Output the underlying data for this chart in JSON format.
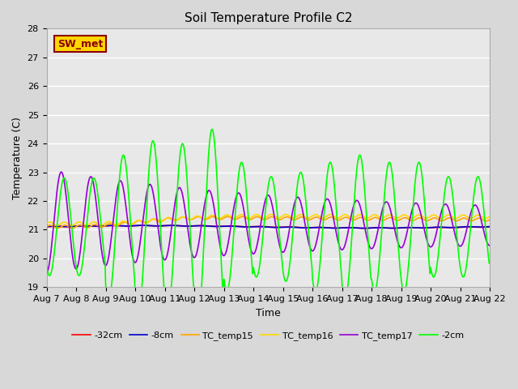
{
  "title": "Soil Temperature Profile C2",
  "xlabel": "Time",
  "ylabel": "Temperature (C)",
  "ylim": [
    19.0,
    28.0
  ],
  "yticks": [
    19.0,
    20.0,
    21.0,
    22.0,
    23.0,
    24.0,
    25.0,
    26.0,
    27.0,
    28.0
  ],
  "xtick_labels": [
    "Aug 7",
    "Aug 8",
    "Aug 9",
    "Aug 10",
    "Aug 11",
    "Aug 12",
    "Aug 13",
    "Aug 14",
    "Aug 15",
    "Aug 16",
    "Aug 17",
    "Aug 18",
    "Aug 19",
    "Aug 20",
    "Aug 21",
    "Aug 22"
  ],
  "annotation_text": "SW_met",
  "annotation_color": "#8B0000",
  "annotation_bg": "#FFD700",
  "series": {
    "-32cm": {
      "color": "#FF0000",
      "linewidth": 1.2,
      "zorder": 3
    },
    "-8cm": {
      "color": "#0000CD",
      "linewidth": 1.2,
      "zorder": 3
    },
    "-2cm": {
      "color": "#00FF00",
      "linewidth": 1.2,
      "zorder": 4
    },
    "TC_temp15": {
      "color": "#FFA500",
      "linewidth": 1.2,
      "zorder": 3
    },
    "TC_temp16": {
      "color": "#FFD700",
      "linewidth": 1.2,
      "zorder": 3
    },
    "TC_temp17": {
      "color": "#9400D3",
      "linewidth": 1.2,
      "zorder": 3
    }
  },
  "background_color": "#D8D8D8",
  "plot_bg_color": "#E8E8E8",
  "grid_color": "#FFFFFF",
  "title_fontsize": 11,
  "axis_label_fontsize": 9,
  "tick_fontsize": 8,
  "n_days": 15,
  "pts_per_day": 48
}
